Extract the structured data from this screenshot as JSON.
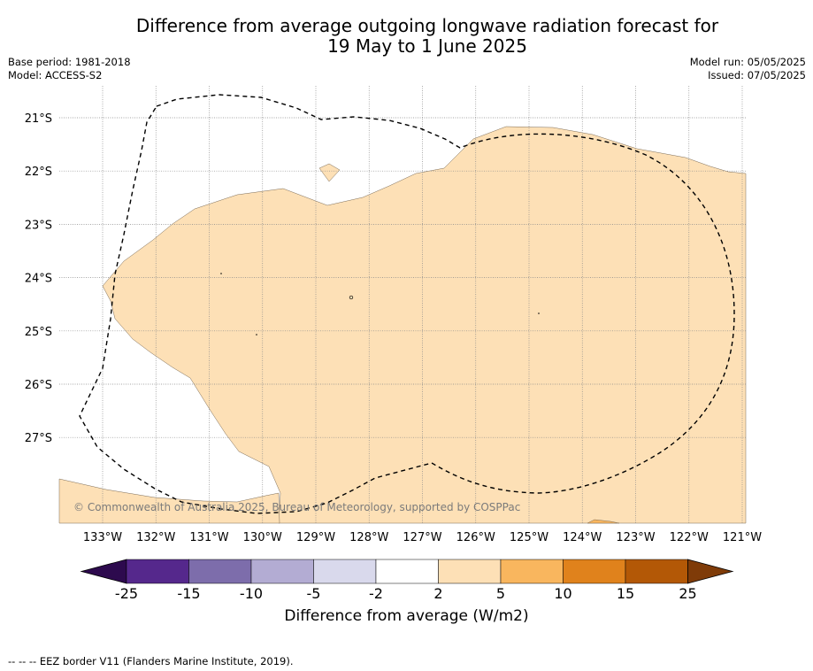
{
  "title": {
    "line1": "Difference from average outgoing longwave radiation forecast for",
    "line2": "19 May to 1 June 2025"
  },
  "meta": {
    "base_period": "Base period: 1981-2018",
    "model": "Model: ACCESS-S2",
    "model_run": "Model run: 05/05/2025",
    "issued": "Issued: 07/05/2025"
  },
  "map": {
    "lat_labels": [
      "21°S",
      "22°S",
      "23°S",
      "24°S",
      "25°S",
      "26°S",
      "27°S"
    ],
    "lon_labels": [
      "133°W",
      "132°W",
      "131°W",
      "130°W",
      "129°W",
      "128°W",
      "127°W",
      "126°W",
      "125°W",
      "124°W",
      "123°W",
      "122°W",
      "121°W"
    ],
    "copyright": "© Commonwealth of Australia 2025, Bureau of Meteorology, supported by COSPPac",
    "eez_border": "dashed black line",
    "shaded_category": "2 to 5"
  },
  "colorbar": {
    "label": "Difference from average (W/m2)",
    "ticks": [
      "-25",
      "-15",
      "-10",
      "-5",
      "-2",
      "2",
      "5",
      "10",
      "15",
      "25"
    ],
    "colors": [
      "#2d0a4e",
      "#55288c",
      "#7d6dab",
      "#b3acd3",
      "#d9d9ec",
      "#ffffff",
      "#fde0b6",
      "#f9b65e",
      "#e0821c",
      "#b35806",
      "#7f3b08"
    ]
  },
  "footer": "--  --  -- EEZ border V11 (Flanders Marine Institute, 2019)."
}
